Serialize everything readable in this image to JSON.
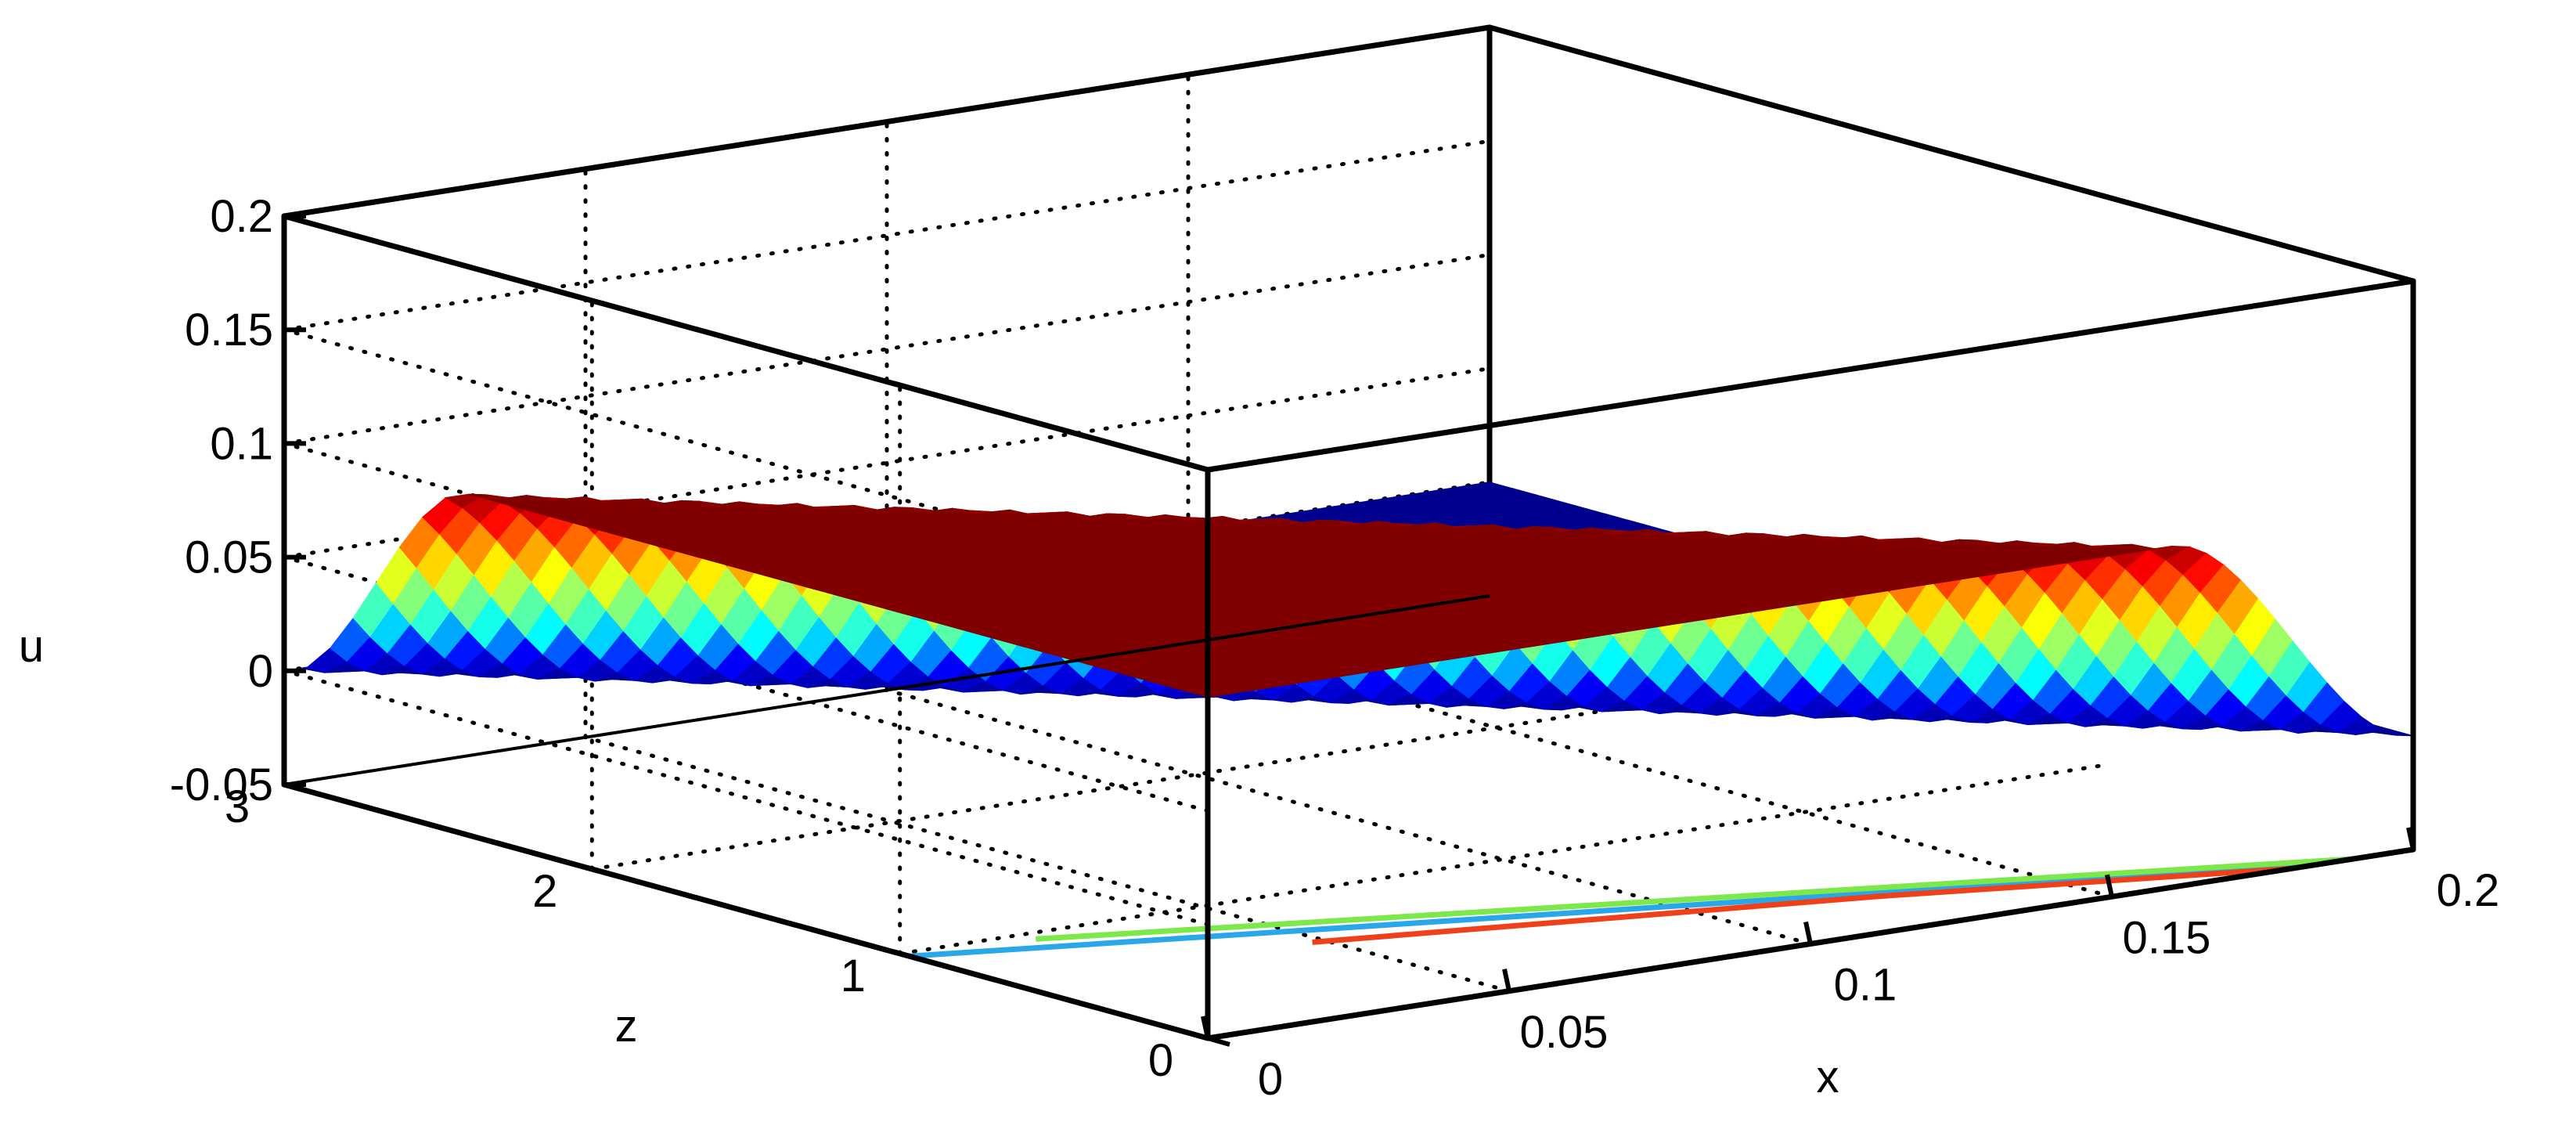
{
  "chart_data": {
    "type": "surface3d",
    "title": "",
    "xlabel": "x",
    "ylabel": "z",
    "zlabel": "u",
    "xlim": [
      0,
      0.2
    ],
    "ylim": [
      0,
      3
    ],
    "zlim": [
      -0.05,
      0.2
    ],
    "x_ticks": [
      0,
      0.05,
      0.1,
      0.15,
      0.2
    ],
    "x_tick_labels": [
      "0",
      "0.05",
      "0.1",
      "0.15",
      "0.2"
    ],
    "y_ticks": [
      0,
      1,
      2,
      3
    ],
    "y_tick_labels": [
      "0",
      "1",
      "2",
      "3"
    ],
    "z_ticks": [
      -0.05,
      0,
      0.05,
      0.1,
      0.15,
      0.2
    ],
    "z_tick_labels": [
      "-0.05",
      "0",
      "0.05",
      "0.1",
      "0.15",
      "0.2"
    ],
    "grid": true,
    "box": true,
    "colormap": "jet",
    "colormap_stops": [
      "#00008f",
      "#0000ff",
      "#00ffff",
      "#80ff80",
      "#ffff00",
      "#ff8000",
      "#ff0000",
      "#800000"
    ],
    "surface": {
      "z_range": [
        0,
        3
      ],
      "x_edge_at_z3": 0.0,
      "x_edge_at_z0": 0.2,
      "transition_width": 0.04,
      "u_low": 0,
      "u_high": 0.1
    },
    "contour_lines": [
      {
        "level": 0.025,
        "color": "#2aa7e8",
        "points": [
          [
            0.0,
            0.97
          ],
          [
            0.185,
            0.0
          ]
        ]
      },
      {
        "level": 0.05,
        "color": "#7ce84a",
        "points": [
          [
            0.02,
            0.95
          ],
          [
            0.19,
            0.0
          ]
        ]
      },
      {
        "level": 0.075,
        "color": "#f0401a",
        "points": [
          [
            0.048,
            0.6
          ],
          [
            0.125,
            0.28
          ],
          [
            0.18,
            0.0
          ]
        ]
      }
    ]
  }
}
